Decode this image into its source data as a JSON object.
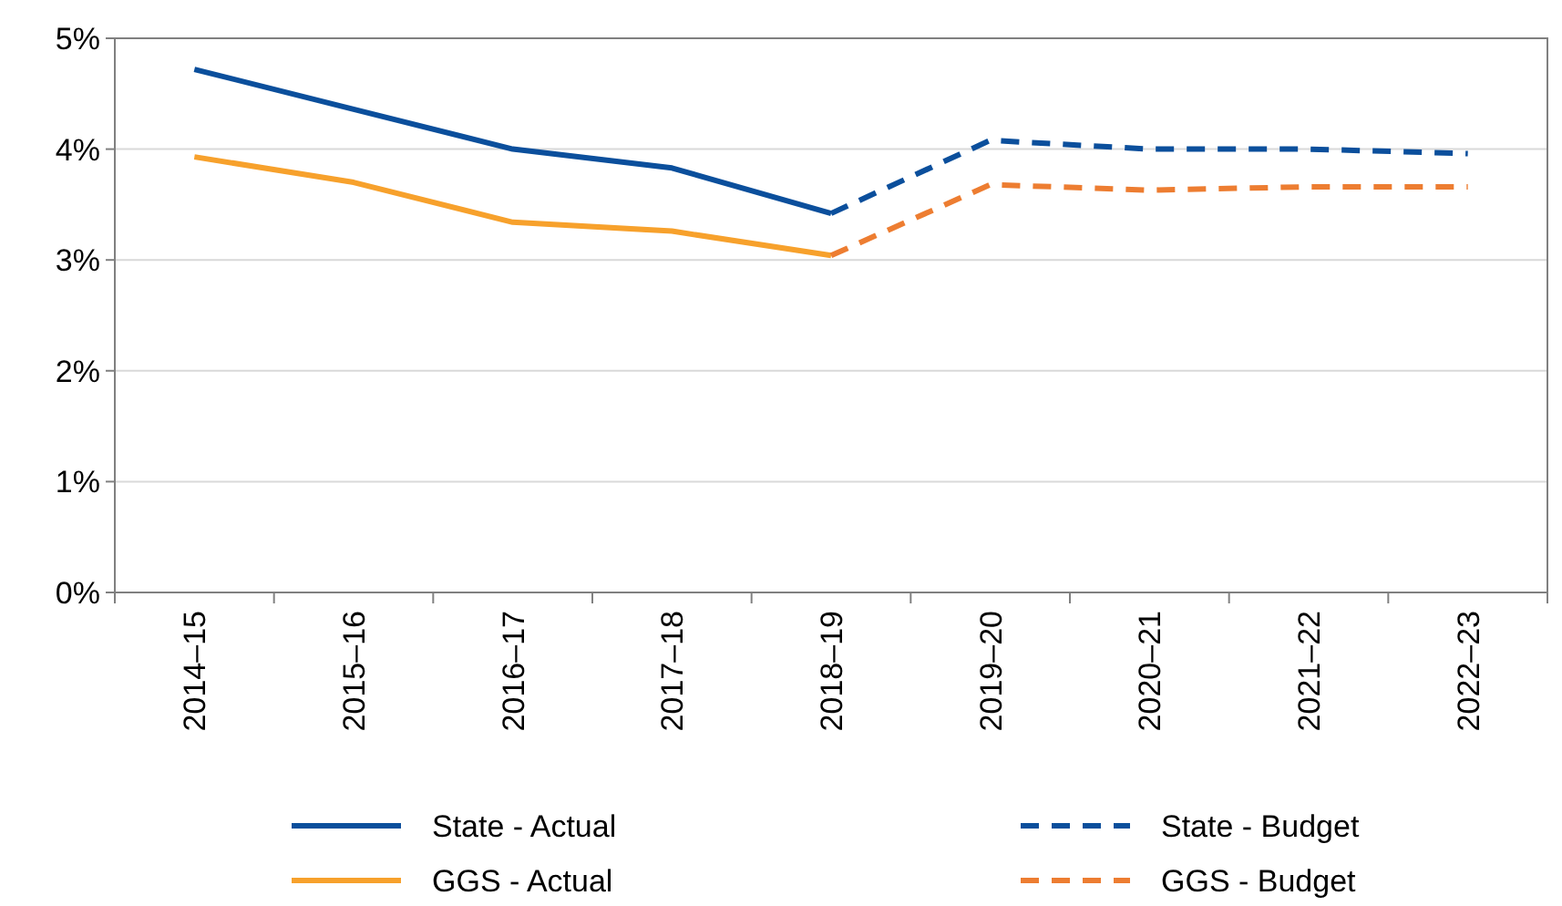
{
  "chart_data": {
    "type": "line",
    "categories": [
      "2014–15",
      "2015–16",
      "2016–17",
      "2017–18",
      "2018–19",
      "2019–20",
      "2020–21",
      "2021–22",
      "2022–23"
    ],
    "series": [
      {
        "name": "State - Actual",
        "color": "#0b4f9c",
        "line_style": "solid",
        "values": [
          4.72,
          4.36,
          4.0,
          3.83,
          3.42,
          null,
          null,
          null,
          null
        ]
      },
      {
        "name": "State - Budget",
        "color": "#0b4f9c",
        "line_style": "dashed",
        "values": [
          null,
          null,
          null,
          null,
          3.42,
          4.08,
          4.0,
          4.0,
          3.96
        ]
      },
      {
        "name": "GGS - Actual",
        "color": "#f7a12c",
        "line_style": "solid",
        "values": [
          3.93,
          3.7,
          3.34,
          3.26,
          3.04,
          null,
          null,
          null,
          null
        ]
      },
      {
        "name": "GGS - Budget",
        "color": "#ed7d31",
        "line_style": "dashed",
        "values": [
          null,
          null,
          null,
          null,
          3.04,
          3.68,
          3.63,
          3.66,
          3.66
        ]
      }
    ],
    "ylim": [
      0,
      5
    ],
    "yticks": [
      {
        "value": 0,
        "label": "0%"
      },
      {
        "value": 1,
        "label": "1%"
      },
      {
        "value": 2,
        "label": "2%"
      },
      {
        "value": 3,
        "label": "3%"
      },
      {
        "value": 4,
        "label": "4%"
      },
      {
        "value": 5,
        "label": "5%"
      }
    ],
    "grid": "y",
    "legend": "bottom"
  }
}
